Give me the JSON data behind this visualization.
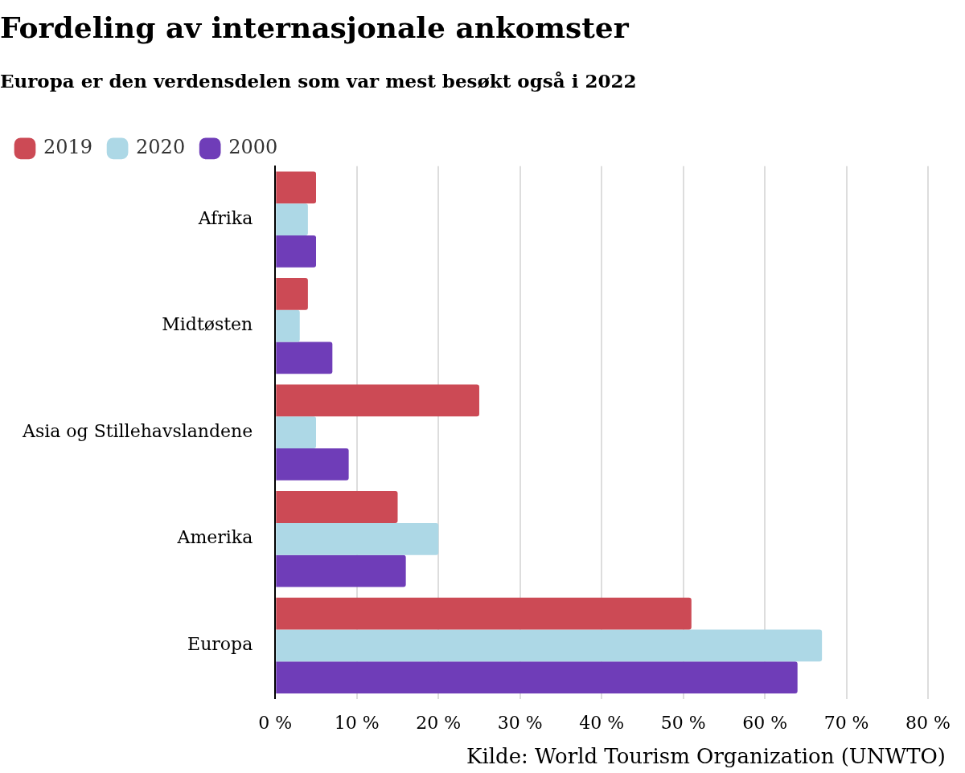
{
  "chart_data": {
    "type": "bar",
    "orientation": "horizontal",
    "title": "Fordeling av internasjonale ankomster",
    "subtitle": "Europa er den verdensdelen som var mest besøkt også i 2022",
    "categories": [
      "Afrika",
      "Midtøsten",
      "Asia og Stillehavslandene",
      "Amerika",
      "Europa"
    ],
    "series": [
      {
        "name": "2019",
        "color": "#cc4a55",
        "values": [
          5,
          4,
          25,
          15,
          51
        ]
      },
      {
        "name": "2020",
        "color": "#add8e6",
        "values": [
          4,
          3,
          5,
          20,
          67
        ]
      },
      {
        "name": "2000",
        "color": "#6f3db8",
        "values": [
          5,
          7,
          9,
          16,
          64
        ]
      }
    ],
    "xlim": [
      0,
      80
    ],
    "xticks": [
      {
        "value": 0,
        "label": "0 %"
      },
      {
        "value": 10,
        "label": "10 %"
      },
      {
        "value": 20,
        "label": "20 %"
      },
      {
        "value": 30,
        "label": "30 %"
      },
      {
        "value": 40,
        "label": "40 %"
      },
      {
        "value": 50,
        "label": "50 %"
      },
      {
        "value": 60,
        "label": "60 %"
      },
      {
        "value": 70,
        "label": "70 %"
      },
      {
        "value": 80,
        "label": "80 %"
      }
    ],
    "grid": "x",
    "legend": "top left",
    "annotations": [
      "Kilde: World Tourism Organization (UNWTO)"
    ]
  }
}
